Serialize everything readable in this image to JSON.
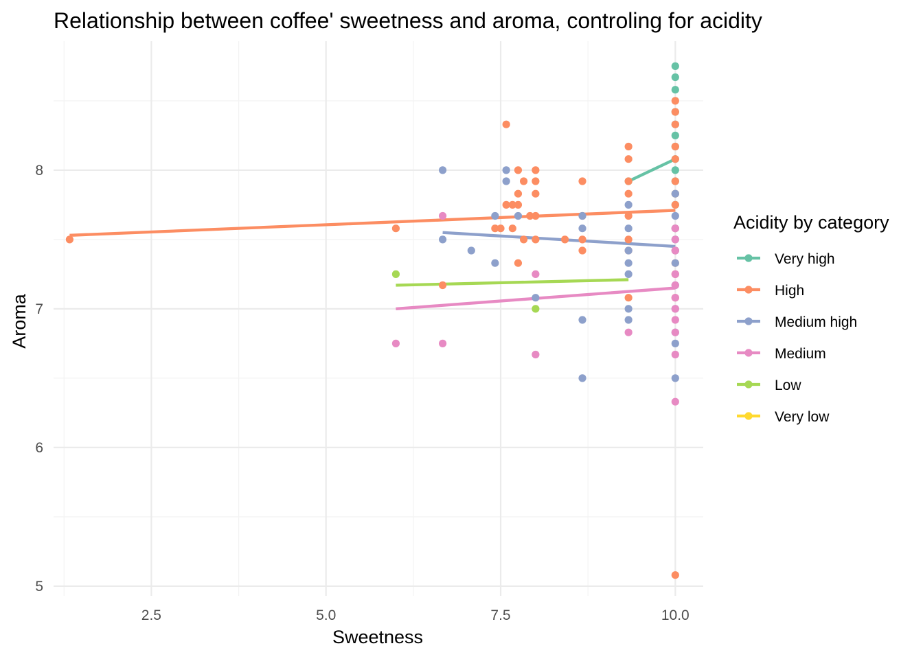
{
  "chart_data": {
    "type": "scatter",
    "title": "Relationship between coffee' sweetness and aroma, controling for acidity",
    "xlabel": "Sweetness",
    "ylabel": "Aroma",
    "xlim": [
      1.1,
      10.4
    ],
    "ylim": [
      4.93,
      8.93
    ],
    "x_ticks": [
      2.5,
      5.0,
      7.5,
      10.0
    ],
    "x_tick_labels": [
      "2.5",
      "5.0",
      "7.5",
      "10.0"
    ],
    "y_ticks": [
      5,
      6,
      7,
      8
    ],
    "y_tick_labels": [
      "5",
      "6",
      "7",
      "8"
    ],
    "grid": true,
    "legend": {
      "title": "Acidity by category",
      "position": "right"
    },
    "series": [
      {
        "name": "Very high",
        "color": "#66c2a5",
        "points": [
          [
            10,
            8.75
          ],
          [
            10,
            8.67
          ],
          [
            10,
            8.58
          ],
          [
            10,
            8.42
          ],
          [
            10,
            8.33
          ],
          [
            10,
            8.25
          ],
          [
            10,
            8.17
          ],
          [
            10,
            8.08
          ],
          [
            10,
            8.0
          ],
          [
            10,
            7.92
          ],
          [
            10,
            7.83
          ],
          [
            10,
            7.75
          ],
          [
            9.33,
            7.92
          ]
        ],
        "trend": [
          [
            9.33,
            7.92
          ],
          [
            10,
            8.08
          ]
        ]
      },
      {
        "name": "High",
        "color": "#fc8d62",
        "points": [
          [
            1.33,
            7.5
          ],
          [
            6.0,
            7.58
          ],
          [
            6.67,
            7.17
          ],
          [
            7.42,
            7.58
          ],
          [
            7.5,
            7.58
          ],
          [
            7.58,
            8.33
          ],
          [
            7.58,
            7.75
          ],
          [
            7.67,
            7.75
          ],
          [
            7.67,
            7.58
          ],
          [
            7.75,
            8.0
          ],
          [
            7.75,
            7.83
          ],
          [
            7.75,
            7.75
          ],
          [
            7.75,
            7.33
          ],
          [
            7.83,
            7.92
          ],
          [
            7.83,
            7.5
          ],
          [
            7.92,
            7.67
          ],
          [
            8.0,
            8.0
          ],
          [
            8.0,
            7.92
          ],
          [
            8.0,
            7.83
          ],
          [
            8.0,
            7.67
          ],
          [
            8.0,
            7.5
          ],
          [
            8.42,
            7.5
          ],
          [
            8.67,
            7.92
          ],
          [
            8.67,
            7.67
          ],
          [
            8.67,
            7.5
          ],
          [
            8.67,
            7.42
          ],
          [
            9.33,
            8.17
          ],
          [
            9.33,
            8.08
          ],
          [
            9.33,
            7.92
          ],
          [
            9.33,
            7.83
          ],
          [
            9.33,
            7.67
          ],
          [
            9.33,
            7.5
          ],
          [
            9.33,
            7.42
          ],
          [
            9.33,
            7.08
          ],
          [
            10,
            8.5
          ],
          [
            10,
            8.42
          ],
          [
            10,
            8.33
          ],
          [
            10,
            8.17
          ],
          [
            10,
            8.08
          ],
          [
            10,
            7.92
          ],
          [
            10,
            7.83
          ],
          [
            10,
            7.75
          ],
          [
            10,
            7.58
          ],
          [
            10,
            7.42
          ],
          [
            10,
            7.33
          ],
          [
            10,
            7.25
          ],
          [
            10,
            7.08
          ],
          [
            10,
            5.08
          ]
        ],
        "trend": [
          [
            1.33,
            7.53
          ],
          [
            10,
            7.71
          ]
        ]
      },
      {
        "name": "Medium high",
        "color": "#8da0cb",
        "points": [
          [
            6.67,
            8.0
          ],
          [
            6.67,
            7.5
          ],
          [
            7.08,
            7.42
          ],
          [
            7.42,
            7.67
          ],
          [
            7.42,
            7.33
          ],
          [
            7.58,
            8.0
          ],
          [
            7.58,
            7.92
          ],
          [
            7.75,
            7.67
          ],
          [
            8.0,
            7.08
          ],
          [
            8.67,
            7.67
          ],
          [
            8.67,
            7.58
          ],
          [
            8.67,
            6.92
          ],
          [
            8.67,
            6.5
          ],
          [
            9.33,
            7.75
          ],
          [
            9.33,
            7.58
          ],
          [
            9.33,
            7.42
          ],
          [
            9.33,
            7.33
          ],
          [
            9.33,
            7.25
          ],
          [
            9.33,
            7.0
          ],
          [
            9.33,
            6.92
          ],
          [
            10,
            7.83
          ],
          [
            10,
            7.67
          ],
          [
            10,
            7.58
          ],
          [
            10,
            7.5
          ],
          [
            10,
            7.42
          ],
          [
            10,
            7.33
          ],
          [
            10,
            7.17
          ],
          [
            10,
            7.0
          ],
          [
            10,
            6.83
          ],
          [
            10,
            6.75
          ],
          [
            10,
            6.5
          ]
        ],
        "trend": [
          [
            6.67,
            7.55
          ],
          [
            10,
            7.45
          ]
        ]
      },
      {
        "name": "Medium",
        "color": "#e78ac3",
        "points": [
          [
            6.0,
            6.75
          ],
          [
            6.67,
            7.67
          ],
          [
            6.67,
            6.75
          ],
          [
            8.0,
            7.25
          ],
          [
            8.0,
            6.67
          ],
          [
            9.33,
            6.83
          ],
          [
            10,
            7.58
          ],
          [
            10,
            7.5
          ],
          [
            10,
            7.42
          ],
          [
            10,
            7.25
          ],
          [
            10,
            7.17
          ],
          [
            10,
            7.08
          ],
          [
            10,
            7.0
          ],
          [
            10,
            6.92
          ],
          [
            10,
            6.83
          ],
          [
            10,
            6.67
          ],
          [
            10,
            6.33
          ]
        ],
        "trend": [
          [
            6.0,
            7.0
          ],
          [
            10,
            7.15
          ]
        ]
      },
      {
        "name": "Low",
        "color": "#a6d854",
        "points": [
          [
            6.0,
            7.25
          ],
          [
            8.0,
            7.0
          ]
        ],
        "trend": [
          [
            6.0,
            7.17
          ],
          [
            9.33,
            7.21
          ]
        ]
      },
      {
        "name": "Very low",
        "color": "#ffd92f",
        "points": [],
        "trend": []
      }
    ]
  }
}
